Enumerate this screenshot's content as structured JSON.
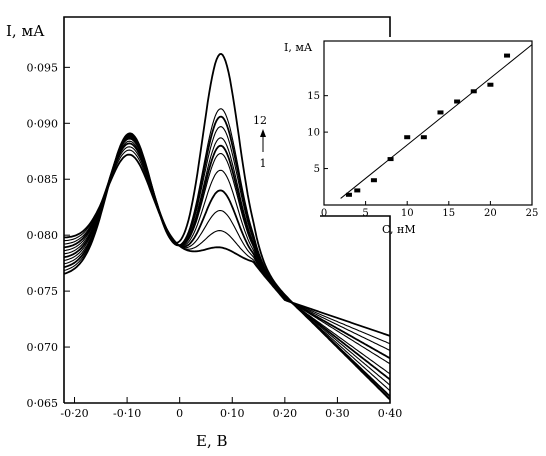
{
  "chart_data": [
    {
      "type": "line",
      "title": "",
      "ylabel": "I, мА",
      "xlabel": "E, B",
      "xlim": [
        -0.22,
        0.4
      ],
      "ylim": [
        0.065,
        0.0995
      ],
      "xticks": [
        "-0·20",
        "-0·10",
        "0",
        "0·10",
        "0·20",
        "0·30",
        "0·40"
      ],
      "yticks": [
        "0·095",
        "0·090",
        "0·085",
        "0·080",
        "0·075",
        "0·070",
        "0·065"
      ],
      "xtick_values": [
        -0.2,
        -0.1,
        0,
        0.1,
        0.2,
        0.3,
        0.4
      ],
      "ytick_values": [
        0.095,
        0.09,
        0.085,
        0.08,
        0.075,
        0.07,
        0.065
      ],
      "annotation": {
        "top": "12",
        "bottom": "1"
      },
      "curve_params": {
        "peak1_x": -0.095,
        "peak2_x": 0.078,
        "peak1_heights": [
          0.0872,
          0.0876,
          0.0879,
          0.0882,
          0.0884,
          0.0886,
          0.0887,
          0.0888,
          0.0889,
          0.0889,
          0.089,
          0.0891
        ],
        "peak2_heights": [
          0.0789,
          0.0804,
          0.0822,
          0.084,
          0.0858,
          0.0873,
          0.088,
          0.0887,
          0.0897,
          0.0906,
          0.0913,
          0.0962
        ],
        "end_values": [
          0.071,
          0.0703,
          0.0697,
          0.069,
          0.0685,
          0.0676,
          0.0671,
          0.0666,
          0.0661,
          0.0656,
          0.0654,
          0.0653
        ]
      }
    },
    {
      "type": "scatter",
      "title": "",
      "ylabel": "I, мА",
      "xlabel": "C, нМ",
      "xlim": [
        0,
        25
      ],
      "ylim": [
        0,
        22.5
      ],
      "xticks": [
        "0",
        "5",
        "10",
        "15",
        "20",
        "25"
      ],
      "yticks": [
        "5",
        "10",
        "15"
      ],
      "xtick_values": [
        0,
        5,
        10,
        15,
        20,
        25
      ],
      "ytick_values": [
        5,
        10,
        15
      ],
      "points": [
        [
          3,
          1.4
        ],
        [
          4,
          2.0
        ],
        [
          6,
          3.4
        ],
        [
          8,
          6.3
        ],
        [
          10,
          9.3
        ],
        [
          12,
          9.3
        ],
        [
          14,
          12.7
        ],
        [
          16,
          14.2
        ],
        [
          18,
          15.6
        ],
        [
          20,
          16.5
        ],
        [
          22,
          20.5
        ]
      ],
      "fit_line": [
        [
          2,
          0.9
        ],
        [
          25,
          22.0
        ]
      ]
    }
  ]
}
